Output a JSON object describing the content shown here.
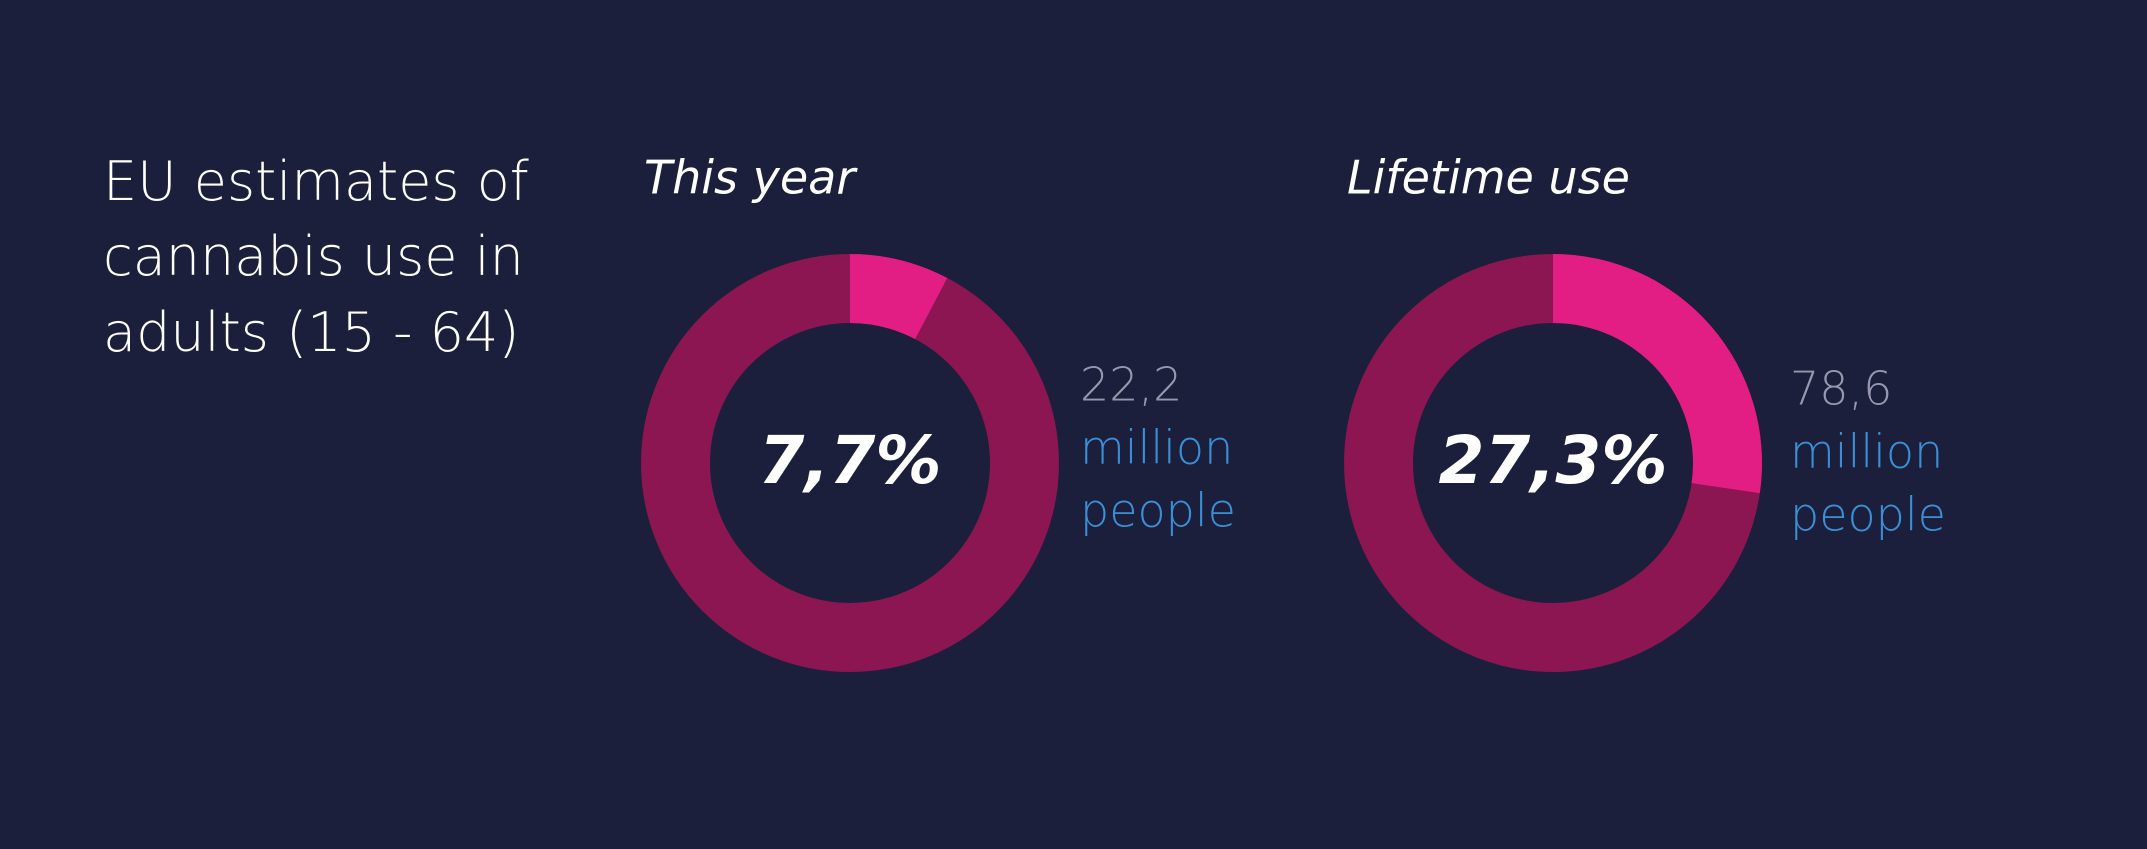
{
  "title_lines": [
    "EU estimates of",
    "cannabis use in",
    "adults (15 - 64)"
  ],
  "chart_data": [
    {
      "type": "donut",
      "title": "This year",
      "values": [
        7.7
      ],
      "value_labels": [
        "7,7%"
      ],
      "color": "#e21e84",
      "track_color": "#8b1652",
      "annotation": {
        "value": 22.2,
        "label": "22,2"
      },
      "unit": [
        "million",
        "people"
      ]
    },
    {
      "type": "donut",
      "title": "Lifetime use",
      "values": [
        27.3
      ],
      "value_labels": [
        "27,3%"
      ],
      "color": "#e21e84",
      "track_color": "#8b1652",
      "annotation": {
        "value": 78.6,
        "label": "78,6"
      },
      "unit": [
        "million",
        "people"
      ]
    }
  ]
}
